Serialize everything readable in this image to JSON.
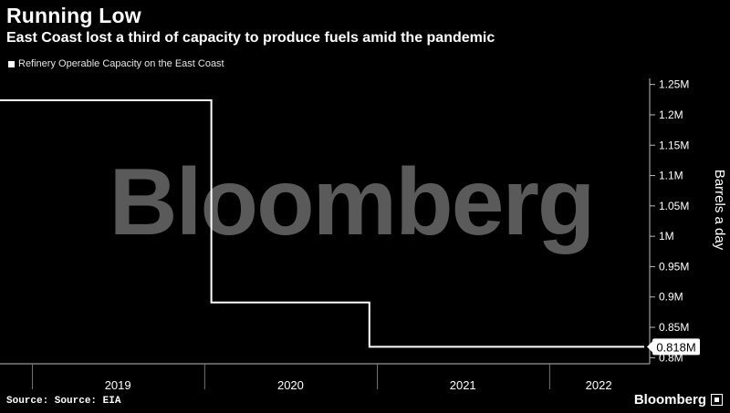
{
  "title": "Running Low",
  "subtitle": "East Coast lost a third of capacity to produce fuels amid the pandemic",
  "source": "Source: Source: EIA",
  "brand": "Bloomberg",
  "watermark": "Bloomberg",
  "colors": {
    "background": "#000000",
    "line": "#ffffff",
    "grid": "#3a3a3a",
    "watermark": "#5a5a5a"
  },
  "chart_data": {
    "type": "line",
    "step": true,
    "series": [
      {
        "name": "Refinery Operable Capacity on the East Coast",
        "points": [
          {
            "x": "2018-12",
            "y": 1.224
          },
          {
            "x": "2020-01",
            "y": 1.224
          },
          {
            "x": "2020-01",
            "y": 0.891
          },
          {
            "x": "2020-12",
            "y": 0.891
          },
          {
            "x": "2020-12",
            "y": 0.818
          },
          {
            "x": "2022-06",
            "y": 0.818
          }
        ]
      }
    ],
    "last_value_label": "0.818M",
    "ylabel": "Barrels a day",
    "y_ticks": [
      "1.25M",
      "1.2M",
      "1.15M",
      "1.1M",
      "1.05M",
      "1M",
      "0.95M",
      "0.9M",
      "0.85M",
      "0.8M"
    ],
    "x_ticks": [
      "2019",
      "2020",
      "2021",
      "2022"
    ],
    "ylim": [
      0.79,
      1.26
    ],
    "grid": false,
    "legend": "top-left"
  }
}
